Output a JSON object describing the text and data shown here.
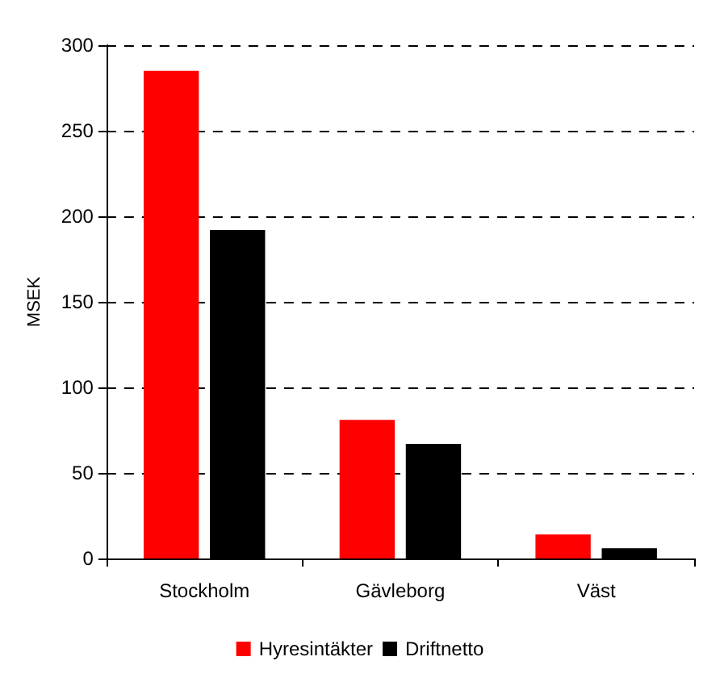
{
  "chart_data": {
    "type": "bar",
    "ylabel": "MSEK",
    "categories": [
      "Stockholm",
      "Gävleborg",
      "Väst"
    ],
    "series": [
      {
        "name": "Hyresintäkter",
        "color": "#ff0000",
        "values": [
          285,
          81,
          14
        ]
      },
      {
        "name": "Driftnetto",
        "color": "#000000",
        "values": [
          192,
          67,
          6
        ]
      }
    ],
    "ylim": [
      0,
      300
    ],
    "yticks": [
      0,
      50,
      100,
      150,
      200,
      250,
      300
    ],
    "grid": "y",
    "legend": "bottom"
  }
}
